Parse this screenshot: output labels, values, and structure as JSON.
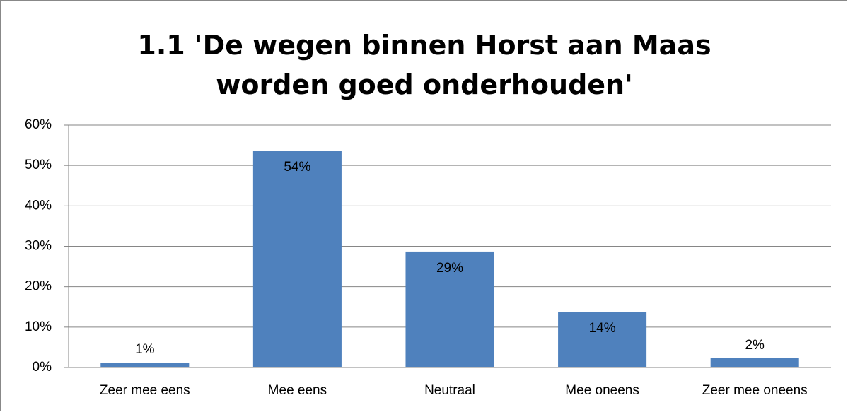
{
  "chart_data": {
    "type": "bar",
    "title": "1.1 'De wegen binnen Horst aan Maas worden goed onderhouden'",
    "categories": [
      "Zeer mee eens",
      "Mee eens",
      "Neutraal",
      "Mee oneens",
      "Zeer mee oneens"
    ],
    "values": [
      1.2,
      53.7,
      28.7,
      13.8,
      2.3
    ],
    "value_labels": [
      "1%",
      "54%",
      "29%",
      "14%",
      "2%"
    ],
    "color": "#4f81bd",
    "ylim": [
      0,
      60
    ],
    "yticks": [
      {
        "value": 0,
        "label": "0%"
      },
      {
        "value": 10,
        "label": "10%"
      },
      {
        "value": 20,
        "label": "20%"
      },
      {
        "value": 30,
        "label": "30%"
      },
      {
        "value": 40,
        "label": "40%"
      },
      {
        "value": 50,
        "label": "50%"
      },
      {
        "value": 60,
        "label": "60%"
      }
    ],
    "grid": true
  }
}
